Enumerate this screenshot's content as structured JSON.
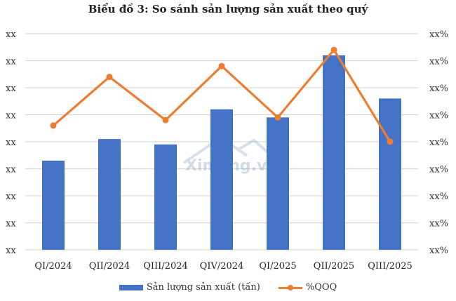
{
  "title": "Biểu đồ 3: So sánh sản lượng sản xuất theo quý",
  "watermark": "Ximang.vn",
  "colors": {
    "bar": "#4472C4",
    "line": "#ED7D31",
    "grid": "#D9D9D9"
  },
  "legend": {
    "bar_label": "Sản lượng sản xuất (tấn)",
    "line_label": "%QOQ"
  },
  "chart_data": {
    "type": "bar+line",
    "title": "Biểu đồ 3: So sánh sản lượng sản xuất theo quý",
    "categories": [
      "QI/2024",
      "QII/2024",
      "QIII/2024",
      "QIV/2024",
      "QI/2025",
      "QII/2025",
      "QIII/2025"
    ],
    "left_axis_ticks": [
      "xx",
      "xx",
      "xx",
      "xx",
      "xx",
      "xx",
      "xx",
      "xx",
      "xx"
    ],
    "right_axis_ticks": [
      "xx%",
      "xx%",
      "xx%",
      "xx%",
      "xx%",
      "xx%",
      "xx%",
      "xx%",
      "xx%"
    ],
    "grid": true,
    "legend_position": "bottom",
    "note": "Axis values are masked (xx); series values below are relative to the 8-gridline scale (0 = bottom, 8 = top).",
    "series": [
      {
        "name": "Sản lượng sản xuất (tấn)",
        "type": "bar",
        "axis": "left",
        "values": [
          3.3,
          4.1,
          3.9,
          5.2,
          4.9,
          7.2,
          5.6
        ]
      },
      {
        "name": "%QOQ",
        "type": "line",
        "axis": "right",
        "values": [
          4.6,
          6.4,
          4.8,
          6.8,
          4.9,
          7.4,
          4.0
        ]
      }
    ]
  }
}
